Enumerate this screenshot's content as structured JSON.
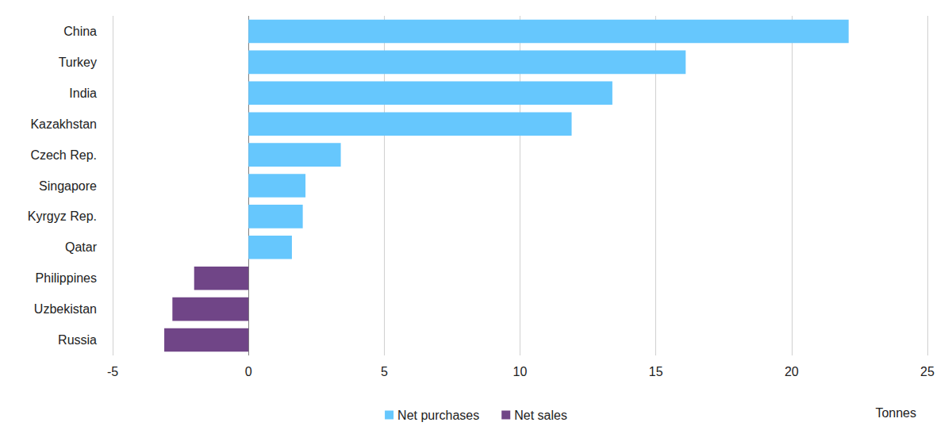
{
  "chart_data": {
    "type": "bar",
    "orientation": "horizontal",
    "categories": [
      "China",
      "Turkey",
      "India",
      "Kazakhstan",
      "Czech Rep.",
      "Singapore",
      "Kyrgyz Rep.",
      "Qatar",
      "Philippines",
      "Uzbekistan",
      "Russia"
    ],
    "series": [
      {
        "name": "Net purchases",
        "color": "#66c7fd",
        "values": [
          22.1,
          16.1,
          13.4,
          11.9,
          3.4,
          2.1,
          2.0,
          1.6,
          null,
          null,
          null
        ]
      },
      {
        "name": "Net sales",
        "color": "#704587",
        "values": [
          null,
          null,
          null,
          null,
          null,
          null,
          null,
          null,
          -2.0,
          -2.8,
          -3.1
        ]
      }
    ],
    "xlabel": "Tonnes",
    "xlim": [
      -5,
      25
    ],
    "xticks": [
      -5,
      0,
      5,
      10,
      15,
      20,
      25
    ],
    "grid": true,
    "legend": "bottom"
  }
}
